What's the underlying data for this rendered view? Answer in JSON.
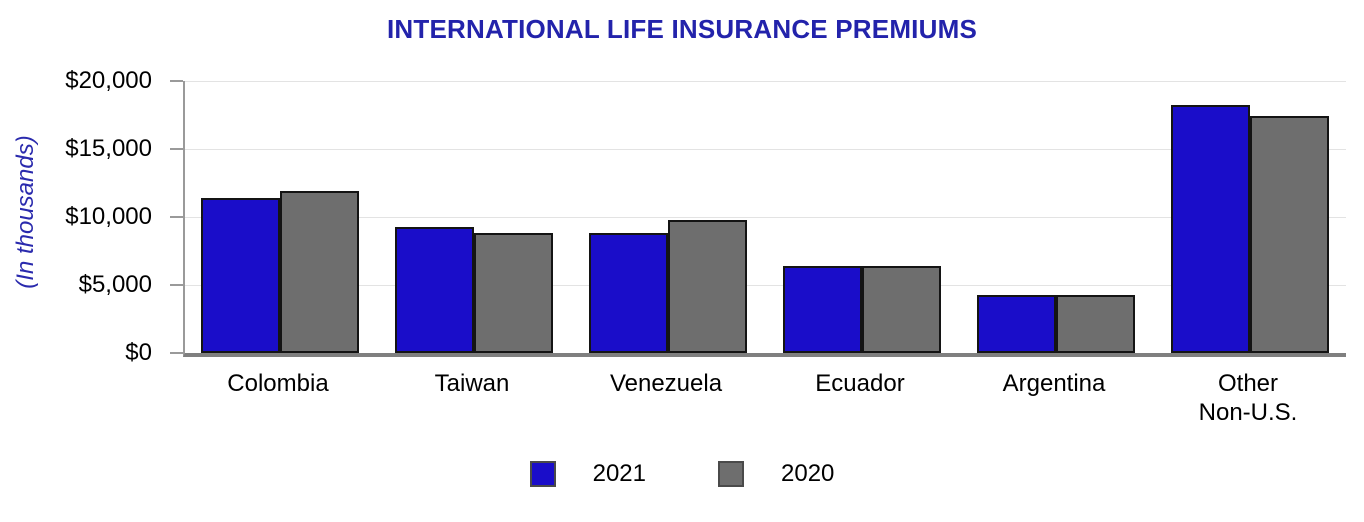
{
  "chart_data": {
    "type": "bar",
    "title": "INTERNATIONAL LIFE INSURANCE PREMIUMS",
    "ylabel": "(In thousands)",
    "xlabel": "",
    "categories": [
      "Colombia",
      "Taiwan",
      "Venezuela",
      "Ecuador",
      "Argentina",
      "Other\nNon-U.S."
    ],
    "series": [
      {
        "name": "2021",
        "color": "#1a0dc9",
        "values": [
          11400,
          9300,
          8800,
          6400,
          4300,
          18200
        ]
      },
      {
        "name": "2020",
        "color": "#6e6e6e",
        "values": [
          11900,
          8800,
          9800,
          6400,
          4300,
          17400
        ]
      }
    ],
    "ylim": [
      0,
      20000
    ],
    "ytick_step": 5000,
    "ytick_labels": [
      "$0",
      "$5,000",
      "$10,000",
      "$15,000",
      "$20,000"
    ],
    "grid": true,
    "legend_position": "bottom"
  },
  "colors": {
    "title_text": "#2323ab",
    "ylabel_text": "#2a2aad",
    "bar_border": "#141414",
    "gridline": "#e3e3e3",
    "axis_line": "#9a9a9a",
    "baseline": "#7f7f7f"
  }
}
